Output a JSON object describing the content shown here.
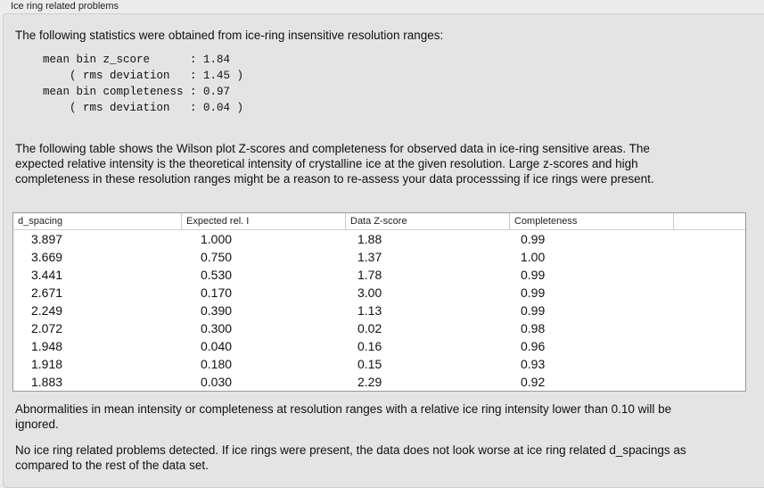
{
  "group_title": "Ice ring related problems",
  "intro": "The following statistics were obtained from ice-ring insensitive resolution ranges:",
  "stats": "mean bin z_score      : 1.84\n    ( rms deviation   : 1.45 )\nmean bin completeness : 0.97\n    ( rms deviation   : 0.04 )",
  "table_intro": "The following table shows the Wilson plot Z-scores and completeness for observed data in ice-ring sensitive areas. The expected relative intensity is the theoretical intensity of crystalline ice at the given resolution. Large z-scores and high completeness in these resolution ranges might be a reason to re-assess your data processsing if ice rings were present.",
  "table": {
    "columns": [
      "d_spacing",
      "Expected rel. I",
      "Data Z-score",
      "Completeness"
    ],
    "rows": [
      [
        "3.897",
        "1.000",
        "1.88",
        "0.99"
      ],
      [
        "3.669",
        "0.750",
        "1.37",
        "1.00"
      ],
      [
        "3.441",
        "0.530",
        "1.78",
        "0.99"
      ],
      [
        "2.671",
        "0.170",
        "3.00",
        "0.99"
      ],
      [
        "2.249",
        "0.390",
        "1.13",
        "0.99"
      ],
      [
        "2.072",
        "0.300",
        "0.02",
        "0.98"
      ],
      [
        "1.948",
        "0.040",
        "0.16",
        "0.96"
      ],
      [
        "1.918",
        "0.180",
        "0.15",
        "0.93"
      ],
      [
        "1.883",
        "0.030",
        "2.29",
        "0.92"
      ]
    ]
  },
  "note": "Abnormalities in mean intensity or completeness at resolution ranges with a relative ice ring intensity lower than 0.10 will be ignored.",
  "conclusion": "No ice ring related problems detected. If ice rings were present, the data does not look worse at ice ring related d_spacings as compared to the rest of the data set."
}
